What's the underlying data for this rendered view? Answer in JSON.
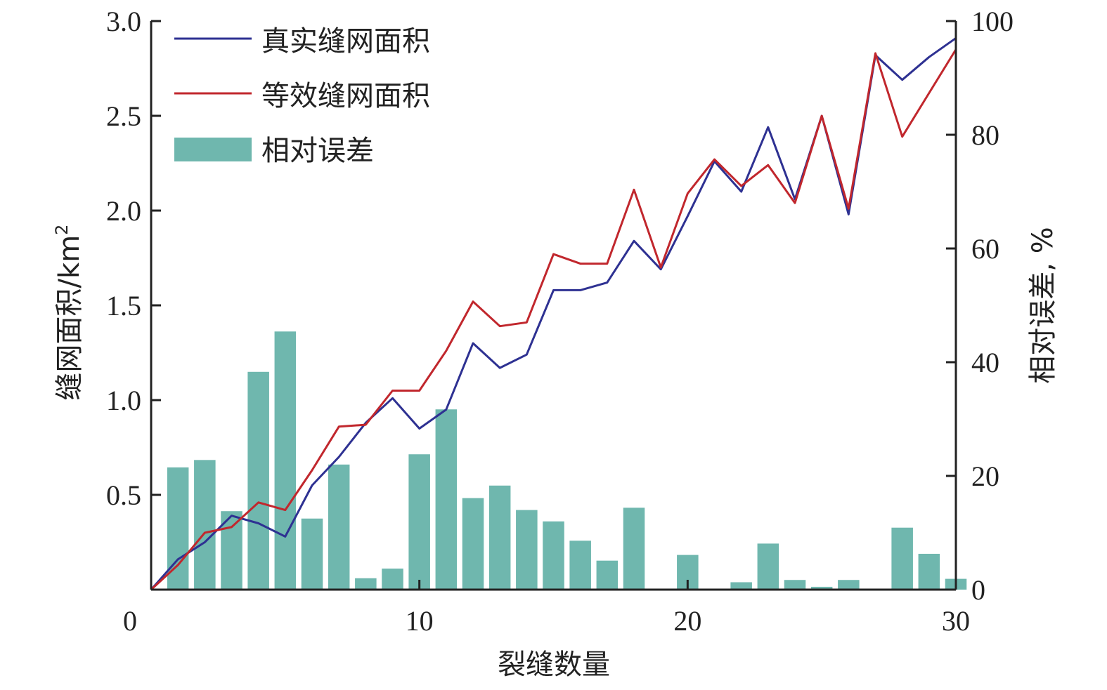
{
  "chart_data": {
    "type": "bar+line",
    "xlabel": "裂缝数量",
    "ylabel_left": "缝网面积/km",
    "ylabel_left_superscript": "2",
    "ylabel_right": "相对误差, %",
    "xlim": [
      0,
      30
    ],
    "ylim_left": [
      0,
      3.0
    ],
    "ylim_right": [
      0,
      100
    ],
    "x_ticks": [
      "0",
      "10",
      "20",
      "30"
    ],
    "y_left_ticks": [
      "0.5",
      "1.0",
      "1.5",
      "2.0",
      "2.5",
      "3.0"
    ],
    "y_right_ticks": [
      "0",
      "20",
      "40",
      "60",
      "80",
      "100"
    ],
    "legend_position": "top-left",
    "grid": false,
    "bars": {
      "name": "相对误差",
      "color": "#6fb7ae",
      "x": [
        1,
        2,
        3,
        4,
        5,
        6,
        7,
        8,
        9,
        10,
        11,
        12,
        13,
        14,
        15,
        16,
        17,
        18,
        19,
        20,
        21,
        22,
        23,
        24,
        25,
        26,
        27,
        28,
        29,
        30
      ],
      "values": [
        21.5,
        22.8,
        13.8,
        38.3,
        45.4,
        12.5,
        22.0,
        2.0,
        3.7,
        23.8,
        31.7,
        16.1,
        18.3,
        14.0,
        12.0,
        8.6,
        5.1,
        14.4,
        0,
        6.1,
        0,
        1.3,
        8.1,
        1.7,
        0.5,
        1.7,
        0,
        10.9,
        6.3,
        1.9
      ]
    },
    "series": [
      {
        "name": "真实缝网面积",
        "color": "#2e3192",
        "x": [
          0,
          1,
          2,
          3,
          4,
          5,
          6,
          7,
          8,
          9,
          10,
          11,
          12,
          13,
          14,
          15,
          16,
          17,
          18,
          19,
          20,
          21,
          22,
          23,
          24,
          25,
          26,
          27,
          28,
          29,
          30
        ],
        "values": [
          0,
          0.16,
          0.25,
          0.39,
          0.35,
          0.28,
          0.55,
          0.7,
          0.88,
          1.01,
          0.85,
          0.95,
          1.3,
          1.17,
          1.24,
          1.58,
          1.58,
          1.62,
          1.84,
          1.69,
          1.97,
          2.26,
          2.1,
          2.44,
          2.06,
          2.5,
          1.98,
          2.82,
          2.69,
          2.81,
          2.91
        ]
      },
      {
        "name": "等效缝网面积",
        "color": "#c1272d",
        "x": [
          0,
          1,
          2,
          3,
          4,
          5,
          6,
          7,
          8,
          9,
          10,
          11,
          12,
          13,
          14,
          15,
          16,
          17,
          18,
          19,
          20,
          21,
          22,
          23,
          24,
          25,
          26,
          27,
          28,
          29,
          30
        ],
        "values": [
          0,
          0.13,
          0.3,
          0.33,
          0.46,
          0.42,
          0.63,
          0.86,
          0.87,
          1.05,
          1.05,
          1.26,
          1.52,
          1.39,
          1.41,
          1.77,
          1.72,
          1.72,
          2.11,
          1.7,
          2.09,
          2.27,
          2.13,
          2.24,
          2.04,
          2.5,
          2.01,
          2.83,
          2.39,
          2.62,
          2.85
        ]
      }
    ]
  }
}
